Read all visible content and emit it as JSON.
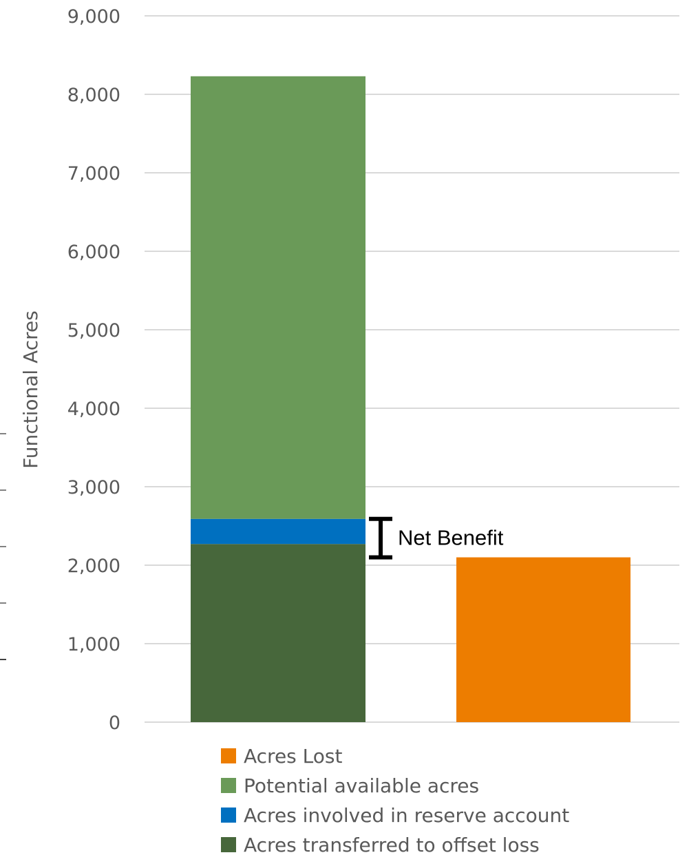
{
  "chart_data": {
    "type": "bar",
    "stacked": true,
    "ylabel": "Functional Acres",
    "xlabel": "",
    "ylim": [
      0,
      9000
    ],
    "yticks": [
      "0",
      "1,000",
      "2,000",
      "3,000",
      "4,000",
      "5,000",
      "6,000",
      "7,000",
      "8,000",
      "9,000"
    ],
    "grid": true,
    "legend_position": "bottom",
    "series": [
      {
        "name": "Acres Lost",
        "color": "#ed7d00",
        "values": [
          0,
          2100
        ]
      },
      {
        "name": "Potential available acres",
        "color": "#6a9a58",
        "values": [
          5640,
          0
        ]
      },
      {
        "name": "Acres involved in reserve account",
        "color": "#0070c0",
        "values": [
          320,
          0
        ]
      },
      {
        "name": "Acres transferred to offset loss",
        "color": "#47673b",
        "values": [
          2270,
          0
        ]
      }
    ],
    "annotation": {
      "text": "Net Benefit",
      "from": 2100,
      "to": 2590
    }
  }
}
